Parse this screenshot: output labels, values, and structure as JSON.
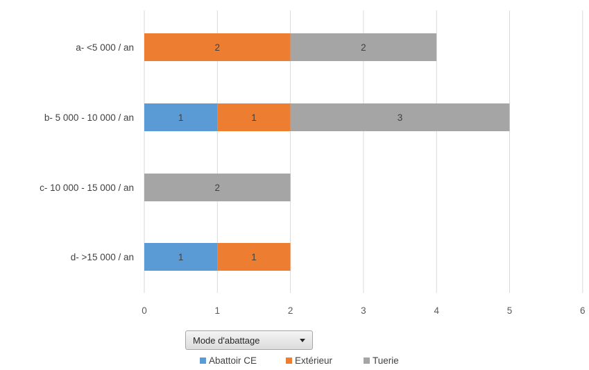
{
  "chart_data": {
    "type": "bar",
    "orientation": "horizontal",
    "stacked": true,
    "categories": [
      "a- <5 000 / an",
      "b- 5 000 - 10 000 / an",
      "c- 10 000 - 15 000 / an",
      "d- >15 000 / an"
    ],
    "series": [
      {
        "name": "Abattoir CE",
        "color": "#5b9bd5",
        "values": [
          0,
          1,
          0,
          1
        ]
      },
      {
        "name": "Extérieur",
        "color": "#ed7d31",
        "values": [
          2,
          1,
          0,
          1
        ]
      },
      {
        "name": "Tuerie",
        "color": "#a5a5a5",
        "values": [
          2,
          3,
          2,
          0
        ]
      }
    ],
    "xlim": [
      0,
      6
    ],
    "x_ticks": [
      0,
      1,
      2,
      3,
      4,
      5,
      6
    ],
    "grid": "vertical",
    "data_labels": true,
    "legend_position": "bottom"
  },
  "filter": {
    "label": "Mode d'abattage",
    "icon": "dropdown-arrow-icon"
  }
}
